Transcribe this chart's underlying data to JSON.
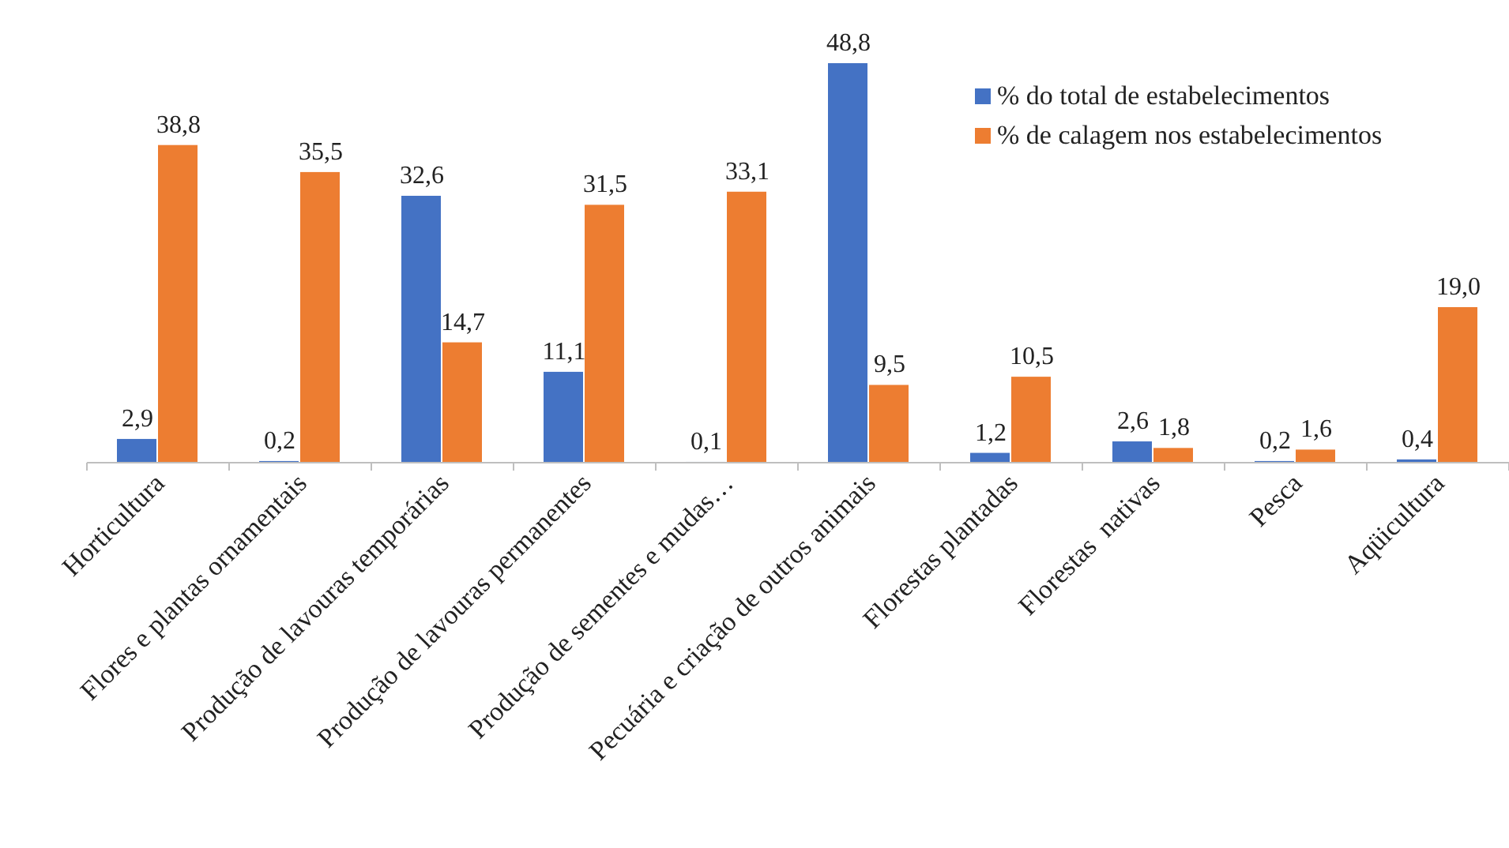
{
  "chart_data": {
    "type": "bar",
    "categories": [
      "Horticultura",
      "Flores e plantas ornamentais",
      "Produção de lavouras temporárias",
      "Produção de lavouras permanentes",
      "Produção de sementes e mudas…",
      "Pecuária e criação de outros animais",
      "Florestas plantadas",
      "Florestas  nativas",
      "Pesca",
      "Aqüicultura"
    ],
    "series": [
      {
        "name": "% do total de estabelecimentos",
        "color": "#4472c4",
        "values": [
          2.9,
          0.2,
          32.6,
          11.1,
          0.1,
          48.8,
          1.2,
          2.6,
          0.2,
          0.4
        ],
        "value_labels": [
          "2,9",
          "0,2",
          "32,6",
          "11,1",
          "0,1",
          "48,8",
          "1,2",
          "2,6",
          "0,2",
          "0,4"
        ]
      },
      {
        "name": "% de calagem nos estabelecimentos",
        "color": "#ed7d31",
        "values": [
          38.8,
          35.5,
          14.7,
          31.5,
          33.1,
          9.5,
          10.5,
          1.8,
          1.6,
          19.0
        ],
        "value_labels": [
          "38,8",
          "35,5",
          "14,7",
          "31,5",
          "33,1",
          "9,5",
          "10,5",
          "1,8",
          "1,6",
          "19,0"
        ]
      }
    ],
    "legend": "top right"
  }
}
